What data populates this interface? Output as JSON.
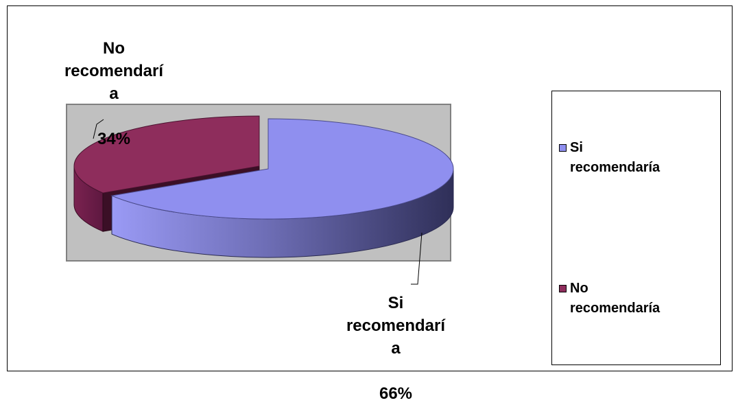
{
  "chart_data": {
    "type": "pie",
    "categories": [
      "Si recomendaría",
      "No recomendaría"
    ],
    "values": [
      66,
      34
    ],
    "percent_labels": [
      "66%",
      "34%"
    ],
    "data_labels": [
      "Si\nrecomendarí\na",
      "No\nrecomendarí\na"
    ],
    "colors": [
      "#8F8FEF",
      "#8E2D5C"
    ],
    "legend": {
      "placement": "right",
      "entries": [
        "Si\nrecomendaría",
        "No\nrecomendaría"
      ]
    },
    "plot_background": "#C0C0C0",
    "three_d": true
  }
}
